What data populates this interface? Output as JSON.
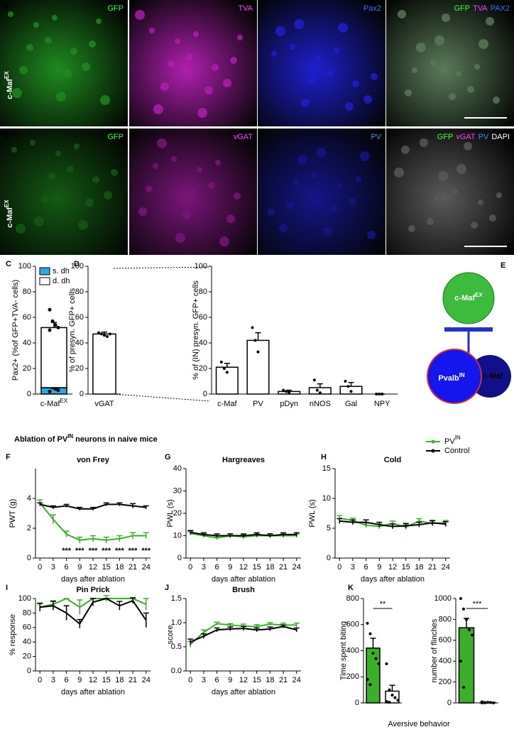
{
  "images": [
    {
      "panel": "A",
      "side_label": "c-Maf",
      "side_sup": "EX",
      "cells": [
        {
          "tone": "#1f8a1f",
          "labels": [
            "GFP"
          ],
          "colors": [
            "#39ff39"
          ]
        },
        {
          "tone": "#b01fb0",
          "labels": [
            "TVA"
          ],
          "colors": [
            "#ff3cff"
          ]
        },
        {
          "tone": "#1f1fd0",
          "labels": [
            "Pax2"
          ],
          "colors": [
            "#3c6cff"
          ]
        },
        {
          "tone": "#5a7a5a",
          "labels": [
            "GFP",
            "TVA",
            "PAX2"
          ],
          "colors": [
            "#39ff39",
            "#ff3cff",
            "#3c6cff"
          ]
        }
      ]
    },
    {
      "panel": "B",
      "side_label": "c-Maf",
      "side_sup": "EX",
      "cells": [
        {
          "tone": "#145a14",
          "labels": [
            "GFP"
          ],
          "colors": [
            "#39ff39"
          ]
        },
        {
          "tone": "#7a157a",
          "labels": [
            "vGAT"
          ],
          "colors": [
            "#ff3cff"
          ]
        },
        {
          "tone": "#15158a",
          "labels": [
            "PV"
          ],
          "colors": [
            "#3c8cff"
          ]
        },
        {
          "tone": "#5a5a5a",
          "labels": [
            "GFP",
            "vGAT",
            "PV",
            "DAPI"
          ],
          "colors": [
            "#39ff39",
            "#ff3cff",
            "#3c8cff",
            "#ffffff"
          ]
        }
      ]
    }
  ],
  "diagram": {
    "panel": "E",
    "top": "c-Maf",
    "top_sup": "EX",
    "left": "Pvalb",
    "left_sup": "IN",
    "right": "c-Maf"
  },
  "heading": {
    "text": "Ablation of PV",
    "sup": "IN",
    "text_after": "neurons in naive mice"
  },
  "chart_data": [
    {
      "type": "bar",
      "panel": "C",
      "stacked": true,
      "ylabel": "Pax2+ (%of GFP+TVA- cells)",
      "categories": [
        "c-Maf"
      ],
      "category_sup": [
        "EX"
      ],
      "series": [
        {
          "name": "s. dh",
          "color": "#29abe2",
          "values": [
            5
          ],
          "errors": [
            2
          ],
          "points": [
            [
              7,
              5,
              4,
              3,
              2
            ]
          ]
        },
        {
          "name": "d. dh",
          "color": "#ffffff",
          "values": [
            47
          ],
          "errors": [
            4
          ]
        }
      ],
      "total_points": [
        66,
        57,
        54,
        52,
        50
      ],
      "ylim": [
        0,
        100
      ],
      "yticks": [
        0,
        20,
        40,
        60,
        80,
        100
      ]
    },
    {
      "type": "bar",
      "panel": "D",
      "ylabel": "% of presyn. GFP+ cells",
      "categories": [
        "vGAT"
      ],
      "values": [
        47
      ],
      "errors": [
        1.5
      ],
      "points": [
        [
          48,
          47,
          46,
          45,
          47
        ]
      ],
      "color": "#ffffff",
      "ylim": [
        0,
        100
      ],
      "yticks": [
        0,
        20,
        40,
        60,
        80,
        100
      ]
    },
    {
      "type": "bar",
      "ylabel": "% of (IN) presyn. GFP+ cells",
      "categories": [
        "c-Maf",
        "PV",
        "pDyn",
        "nNOS",
        "Gal",
        "NPY"
      ],
      "values": [
        21,
        42,
        2,
        5,
        6,
        0
      ],
      "errors": [
        3,
        6,
        1,
        3,
        3,
        0
      ],
      "points": [
        [
          25,
          20,
          17
        ],
        [
          52,
          42,
          33
        ],
        [
          3,
          2,
          1
        ],
        [
          11,
          3,
          1
        ],
        [
          10,
          6,
          2
        ],
        [
          0,
          0,
          0
        ]
      ],
      "color": "#ffffff",
      "ylim": [
        0,
        100
      ],
      "yticks": [
        0,
        20,
        40,
        60,
        80,
        100
      ]
    },
    {
      "type": "line",
      "panel": "F",
      "title": "von Frey",
      "ylabel": "PWT (g)",
      "xlabel": "days after ablation",
      "legend": true,
      "x": [
        0,
        3,
        6,
        9,
        12,
        15,
        18,
        21,
        24
      ],
      "xlim": [
        -1,
        25
      ],
      "xticks": [
        0,
        3,
        6,
        9,
        12,
        15,
        18,
        21,
        24
      ],
      "ylim": [
        0,
        6
      ],
      "yticks": [
        0,
        2,
        4
      ],
      "series": [
        {
          "name": "PV",
          "name_sup": "IN",
          "color": "#3dae2b",
          "values": [
            3.7,
            2.6,
            1.6,
            1.2,
            1.3,
            1.2,
            1.3,
            1.5,
            1.5
          ],
          "errors": [
            0.2,
            0.3,
            0.2,
            0.2,
            0.2,
            0.2,
            0.2,
            0.2,
            0.2
          ]
        },
        {
          "name": "Control",
          "color": "#000000",
          "values": [
            3.6,
            3.4,
            3.5,
            3.3,
            3.3,
            3.6,
            3.6,
            3.5,
            3.4
          ],
          "errors": [
            0.1,
            0.1,
            0.1,
            0.1,
            0.1,
            0.1,
            0.1,
            0.15,
            0.1
          ]
        }
      ],
      "annotations": [
        {
          "x": 6,
          "text": "***"
        },
        {
          "x": 9,
          "text": "***"
        },
        {
          "x": 12,
          "text": "***"
        },
        {
          "x": 15,
          "text": "***"
        },
        {
          "x": 18,
          "text": "***"
        },
        {
          "x": 21,
          "text": "***"
        },
        {
          "x": 24,
          "text": "***"
        }
      ]
    },
    {
      "type": "line",
      "panel": "G",
      "title": "Hargreaves",
      "ylabel": "PWL (s)",
      "xlabel": "days after ablation",
      "x": [
        0,
        3,
        6,
        9,
        12,
        15,
        18,
        21,
        24
      ],
      "xlim": [
        -1,
        25
      ],
      "xticks": [
        0,
        3,
        6,
        9,
        12,
        15,
        18,
        21,
        24
      ],
      "ylim": [
        0,
        40
      ],
      "yticks": [
        0,
        10,
        20,
        30,
        40
      ],
      "series": [
        {
          "color": "#3dae2b",
          "values": [
            11,
            10,
            9,
            10,
            9.5,
            10,
            10,
            10,
            10
          ],
          "errors": [
            0.8,
            0.8,
            0.8,
            0.8,
            0.8,
            0.8,
            0.8,
            0.8,
            0.8
          ]
        },
        {
          "color": "#000000",
          "values": [
            11.5,
            10.5,
            10,
            10,
            10,
            10.5,
            10,
            10.5,
            10.5
          ],
          "errors": [
            0.8,
            0.8,
            0.8,
            0.8,
            0.8,
            0.8,
            0.8,
            0.8,
            0.8
          ]
        }
      ]
    },
    {
      "type": "line",
      "panel": "H",
      "title": "Cold",
      "ylabel": "PWL (s)",
      "xlabel": "days after ablation",
      "x": [
        0,
        3,
        6,
        9,
        12,
        15,
        18,
        21,
        24
      ],
      "xlim": [
        -1,
        25
      ],
      "xticks": [
        0,
        3,
        6,
        9,
        12,
        15,
        18,
        21,
        24
      ],
      "ylim": [
        0,
        15
      ],
      "yticks": [
        0,
        5,
        10,
        15
      ],
      "series": [
        {
          "color": "#3dae2b",
          "values": [
            6.7,
            6.3,
            5.5,
            5.3,
            5.8,
            5.2,
            6.2,
            5.8,
            5.9
          ],
          "errors": [
            0.4,
            0.4,
            0.4,
            0.4,
            0.4,
            0.4,
            0.4,
            0.4,
            0.4
          ]
        },
        {
          "color": "#000000",
          "values": [
            6.2,
            6,
            6,
            5.6,
            5.3,
            5.4,
            5.6,
            5.9,
            5.7
          ],
          "errors": [
            0.4,
            0.4,
            0.4,
            0.4,
            0.4,
            0.4,
            0.4,
            0.4,
            0.4
          ]
        }
      ]
    },
    {
      "type": "line",
      "panel": "I",
      "title": "Pin Prick",
      "ylabel": "% response",
      "xlabel": "days after ablation",
      "x": [
        0,
        3,
        6,
        9,
        12,
        15,
        18,
        21,
        24
      ],
      "xlim": [
        -1,
        25
      ],
      "xticks": [
        0,
        3,
        6,
        9,
        12,
        15,
        18,
        21,
        24
      ],
      "ylim": [
        0,
        100
      ],
      "yticks": [
        0,
        20,
        40,
        60,
        80,
        100
      ],
      "series": [
        {
          "color": "#3dae2b",
          "values": [
            88,
            92,
            100,
            88,
            100,
            100,
            100,
            100,
            92
          ],
          "errors": [
            6,
            5,
            0,
            10,
            0,
            4,
            0,
            0,
            8
          ]
        },
        {
          "color": "#000000",
          "values": [
            88,
            90,
            80,
            65,
            95,
            100,
            90,
            97,
            70
          ],
          "errors": [
            5,
            6,
            10,
            6,
            5,
            0,
            6,
            4,
            10
          ]
        }
      ]
    },
    {
      "type": "line",
      "panel": "J",
      "title": "Brush",
      "ylabel": "score",
      "xlabel": "days after ablation",
      "x": [
        0,
        3,
        6,
        9,
        12,
        15,
        18,
        21,
        24
      ],
      "xlim": [
        -1,
        25
      ],
      "xticks": [
        0,
        3,
        6,
        9,
        12,
        15,
        18,
        21,
        24
      ],
      "ylim": [
        0,
        1.5
      ],
      "yticks": [
        {
          "value": 0,
          "label": "0.0"
        },
        0.5,
        {
          "value": 1,
          "label": "1.0"
        },
        1.5
      ],
      "series": [
        {
          "color": "#3dae2b",
          "values": [
            0.55,
            0.8,
            0.98,
            0.95,
            0.93,
            0.92,
            0.97,
            0.95,
            0.95
          ],
          "errors": [
            0.06,
            0.05,
            0.03,
            0.03,
            0.04,
            0.04,
            0.03,
            0.04,
            0.04
          ]
        },
        {
          "color": "#000000",
          "values": [
            0.6,
            0.72,
            0.85,
            0.87,
            0.88,
            0.85,
            0.87,
            0.92,
            0.85
          ],
          "errors": [
            0.06,
            0.05,
            0.04,
            0.04,
            0.04,
            0.04,
            0.04,
            0.03,
            0.04
          ]
        }
      ]
    },
    {
      "type": "bar",
      "panel": "K",
      "ylabel": "Time spent biting",
      "xlabel": "Aversive behavior",
      "categories": [
        null,
        null
      ],
      "values": [
        420,
        90
      ],
      "errors": [
        75,
        45
      ],
      "colors": [
        "#3dae2b",
        "#ffffff"
      ],
      "points": [
        [
          610,
          530,
          380,
          340,
          300,
          180,
          140
        ],
        [
          300,
          100,
          60,
          40,
          20,
          10,
          5
        ]
      ],
      "ylim": [
        0,
        800
      ],
      "yticks": [
        0,
        200,
        400,
        600,
        800
      ],
      "significance": "**"
    },
    {
      "type": "bar",
      "ylabel": "number of flinches",
      "categories": [
        null,
        null
      ],
      "values": [
        720,
        5
      ],
      "errors": [
        90,
        3
      ],
      "colors": [
        "#3dae2b",
        "#ffffff"
      ],
      "points": [
        [
          1000,
          900,
          800,
          700,
          650,
          400,
          150
        ],
        [
          10,
          5,
          5,
          3,
          0,
          0,
          0
        ]
      ],
      "ylim": [
        0,
        1000
      ],
      "yticks": [
        0,
        200,
        400,
        600,
        800,
        1000
      ],
      "significance": "***"
    }
  ]
}
